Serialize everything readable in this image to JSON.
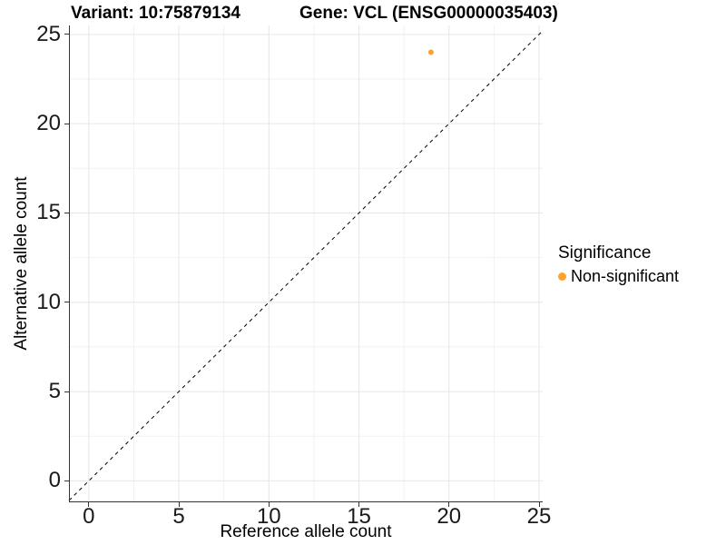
{
  "chart_data": {
    "type": "scatter",
    "title_left": "Variant: 10:75879134",
    "title_right": "Gene: VCL (ENSG00000035403)",
    "xlabel": "Reference allele count",
    "ylabel": "Alternative allele count",
    "xlim": [
      -1.1,
      25.2
    ],
    "ylim": [
      -1.2,
      25.5
    ],
    "xticks": [
      0,
      5,
      10,
      15,
      20,
      25
    ],
    "yticks": [
      0,
      5,
      10,
      15,
      20,
      25
    ],
    "minor_xticks": [
      2.5,
      7.5,
      12.5,
      17.5,
      22.5
    ],
    "minor_yticks": [
      2.5,
      7.5,
      12.5,
      17.5,
      22.5
    ],
    "grid": "major+minor",
    "series": [
      {
        "name": "Non-significant",
        "color": "#FFA328",
        "marker": "circle",
        "points": [
          {
            "x": 19,
            "y": 24
          }
        ]
      }
    ],
    "reference_line": {
      "kind": "identity",
      "slope": 1,
      "intercept": 0,
      "linetype": "dashed",
      "color": "#000000"
    },
    "legend": {
      "title": "Significance",
      "position": "right",
      "items": [
        {
          "label": "Non-significant",
          "color": "#FFA328"
        }
      ]
    },
    "colors": {
      "background": "#FFFFFF",
      "grid_major": "#E6E6E6",
      "grid_minor": "#F2F2F2",
      "axis": "#333333",
      "text": "#000000"
    }
  }
}
